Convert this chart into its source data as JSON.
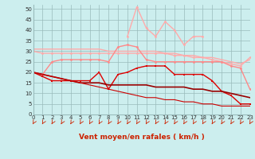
{
  "x": [
    0,
    1,
    2,
    3,
    4,
    5,
    6,
    7,
    8,
    9,
    10,
    11,
    12,
    13,
    14,
    15,
    16,
    17,
    18,
    19,
    20,
    21,
    22,
    23
  ],
  "series": [
    {
      "name": "line1_smooth_top",
      "color": "#ffaaaa",
      "lw": 1.0,
      "marker": null,
      "values": [
        31,
        31,
        31,
        31,
        31,
        31,
        31,
        31,
        30,
        30,
        30,
        30,
        30,
        30,
        29,
        29,
        28,
        28,
        27,
        27,
        26,
        25,
        24,
        26
      ]
    },
    {
      "name": "line2_smooth_middle",
      "color": "#ffaaaa",
      "lw": 1.0,
      "marker": "o",
      "markersize": 2.0,
      "values": [
        30,
        29,
        29,
        29,
        29,
        29,
        29,
        29,
        29,
        29,
        29,
        29,
        29,
        29,
        29,
        28,
        28,
        27,
        27,
        26,
        25,
        24,
        23,
        27
      ]
    },
    {
      "name": "line3_pink_wavy",
      "color": "#ff8888",
      "lw": 1.0,
      "marker": "o",
      "markersize": 2.0,
      "values": [
        20,
        19,
        25,
        26,
        26,
        26,
        26,
        26,
        25,
        32,
        33,
        32,
        26,
        25,
        25,
        25,
        25,
        25,
        25,
        25,
        25,
        23,
        22,
        12
      ]
    },
    {
      "name": "line4_very_high_spike",
      "color": "#ffaaaa",
      "lw": 1.0,
      "marker": "o",
      "markersize": 2.0,
      "values": [
        null,
        null,
        null,
        null,
        null,
        null,
        null,
        null,
        null,
        null,
        37,
        51,
        41,
        37,
        44,
        40,
        33,
        37,
        37,
        null,
        null,
        null,
        null,
        null
      ]
    },
    {
      "name": "line5_dark_red_square",
      "color": "#dd0000",
      "lw": 1.0,
      "marker": "s",
      "markersize": 2.0,
      "values": [
        20,
        18,
        16,
        16,
        16,
        16,
        16,
        20,
        12,
        19,
        20,
        22,
        23,
        23,
        23,
        19,
        19,
        19,
        19,
        16,
        11,
        9,
        5,
        5
      ]
    },
    {
      "name": "line6_dark_decline",
      "color": "#990000",
      "lw": 1.2,
      "marker": null,
      "values": [
        20,
        19,
        18,
        17,
        16,
        15,
        15,
        15,
        14,
        14,
        14,
        14,
        14,
        13,
        13,
        13,
        13,
        12,
        12,
        11,
        11,
        10,
        9,
        8
      ]
    },
    {
      "name": "line7_lower_decline",
      "color": "#cc0000",
      "lw": 0.8,
      "marker": null,
      "values": [
        20,
        19,
        18,
        17,
        16,
        15,
        14,
        13,
        12,
        11,
        10,
        9,
        8,
        8,
        7,
        7,
        6,
        6,
        5,
        5,
        4,
        4,
        4,
        4
      ]
    }
  ],
  "xlabel": "Vent moyen/en rafales ( km/h )",
  "xlim": [
    0,
    23
  ],
  "ylim": [
    0,
    52
  ],
  "yticks": [
    0,
    5,
    10,
    15,
    20,
    25,
    30,
    35,
    40,
    45,
    50
  ],
  "xticks": [
    0,
    1,
    2,
    3,
    4,
    5,
    6,
    7,
    8,
    9,
    10,
    11,
    12,
    13,
    14,
    15,
    16,
    17,
    18,
    19,
    20,
    21,
    22,
    23
  ],
  "bg_color": "#cceeee",
  "grid_color": "#99bbbb",
  "arrow_color": "#cc2200",
  "xlabel_color": "#cc2200",
  "tick_label_color": "#cc2200"
}
